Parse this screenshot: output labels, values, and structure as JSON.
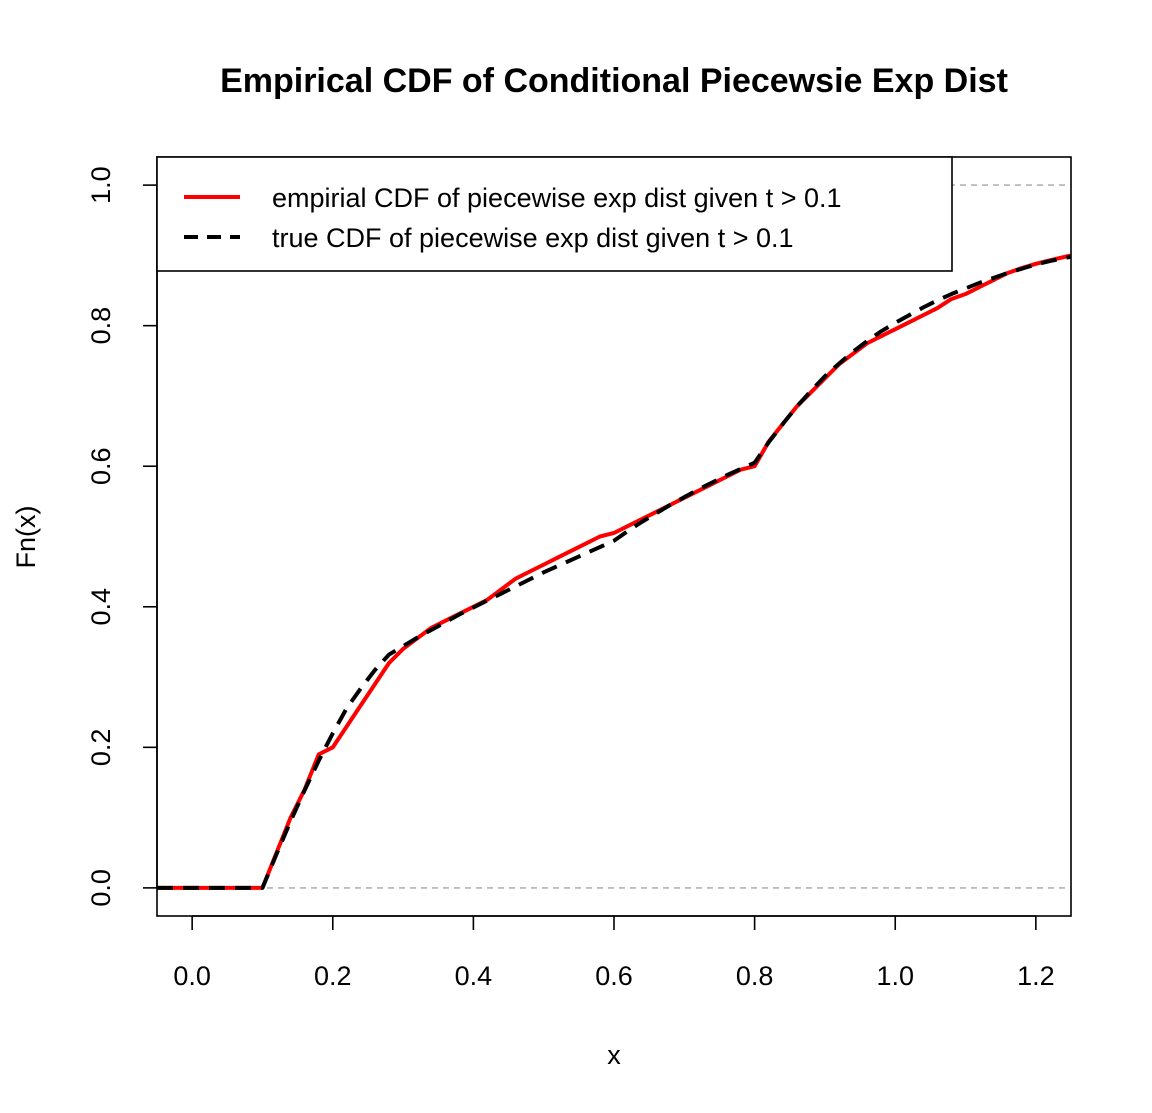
{
  "chart_data": {
    "type": "line",
    "title": "Empirical CDF of Conditional Piecewsie Exp Dist",
    "xlabel": "x",
    "ylabel": "Fn(x)",
    "xlim": [
      -0.05,
      1.25
    ],
    "ylim": [
      -0.04,
      1.04
    ],
    "x_ticks": [
      "0.0",
      "0.2",
      "0.4",
      "0.6",
      "0.8",
      "1.0",
      "1.2"
    ],
    "x_tick_values": [
      0,
      0.2,
      0.4,
      0.6,
      0.8,
      1.0,
      1.2
    ],
    "y_ticks": [
      "0.0",
      "0.2",
      "0.4",
      "0.6",
      "0.8",
      "1.0"
    ],
    "y_tick_values": [
      0,
      0.2,
      0.4,
      0.6,
      0.8,
      1.0
    ],
    "reference_lines_y": [
      0,
      1
    ],
    "legend_position": "top-left",
    "series": [
      {
        "name": "empirial CDF of piecewise exp dist given t > 0.1",
        "color": "#ff0000",
        "style": "solid",
        "x": [
          -0.05,
          0.1,
          0.12,
          0.14,
          0.16,
          0.18,
          0.2,
          0.22,
          0.24,
          0.26,
          0.28,
          0.3,
          0.32,
          0.34,
          0.36,
          0.38,
          0.4,
          0.42,
          0.44,
          0.46,
          0.48,
          0.5,
          0.52,
          0.54,
          0.56,
          0.58,
          0.6,
          0.62,
          0.64,
          0.66,
          0.68,
          0.7,
          0.72,
          0.74,
          0.76,
          0.78,
          0.8,
          0.82,
          0.84,
          0.86,
          0.88,
          0.9,
          0.92,
          0.94,
          0.96,
          0.98,
          1.0,
          1.02,
          1.04,
          1.06,
          1.08,
          1.1,
          1.12,
          1.14,
          1.16,
          1.18,
          1.2,
          1.22,
          1.25
        ],
        "y": [
          0,
          0,
          0.05,
          0.1,
          0.14,
          0.19,
          0.2,
          0.23,
          0.26,
          0.29,
          0.32,
          0.34,
          0.355,
          0.37,
          0.38,
          0.39,
          0.4,
          0.41,
          0.425,
          0.44,
          0.45,
          0.46,
          0.47,
          0.48,
          0.49,
          0.5,
          0.505,
          0.515,
          0.525,
          0.535,
          0.545,
          0.555,
          0.565,
          0.575,
          0.585,
          0.595,
          0.6,
          0.635,
          0.66,
          0.685,
          0.705,
          0.725,
          0.745,
          0.76,
          0.775,
          0.785,
          0.795,
          0.805,
          0.815,
          0.825,
          0.838,
          0.845,
          0.855,
          0.865,
          0.875,
          0.882,
          0.888,
          0.893,
          0.9
        ]
      },
      {
        "name": "true CDF of piecewise exp dist given t > 0.1",
        "color": "#000000",
        "style": "dashed",
        "x": [
          -0.05,
          0.1,
          0.12,
          0.14,
          0.16,
          0.18,
          0.2,
          0.22,
          0.24,
          0.26,
          0.28,
          0.3,
          0.32,
          0.34,
          0.36,
          0.38,
          0.4,
          0.42,
          0.44,
          0.46,
          0.48,
          0.5,
          0.52,
          0.54,
          0.56,
          0.58,
          0.6,
          0.62,
          0.64,
          0.66,
          0.68,
          0.7,
          0.72,
          0.74,
          0.76,
          0.78,
          0.8,
          0.82,
          0.84,
          0.86,
          0.88,
          0.9,
          0.92,
          0.94,
          0.96,
          0.98,
          1.0,
          1.02,
          1.04,
          1.06,
          1.08,
          1.1,
          1.12,
          1.14,
          1.16,
          1.18,
          1.2,
          1.22,
          1.25
        ],
        "y": [
          0,
          0,
          0.048,
          0.095,
          0.139,
          0.181,
          0.22,
          0.256,
          0.284,
          0.31,
          0.332,
          0.344,
          0.356,
          0.367,
          0.378,
          0.389,
          0.399,
          0.409,
          0.419,
          0.429,
          0.439,
          0.449,
          0.458,
          0.467,
          0.476,
          0.485,
          0.494,
          0.508,
          0.521,
          0.533,
          0.545,
          0.556,
          0.567,
          0.577,
          0.587,
          0.596,
          0.605,
          0.634,
          0.66,
          0.685,
          0.707,
          0.728,
          0.746,
          0.763,
          0.778,
          0.792,
          0.804,
          0.815,
          0.826,
          0.836,
          0.845,
          0.853,
          0.861,
          0.868,
          0.875,
          0.881,
          0.887,
          0.892,
          0.898
        ]
      }
    ]
  }
}
